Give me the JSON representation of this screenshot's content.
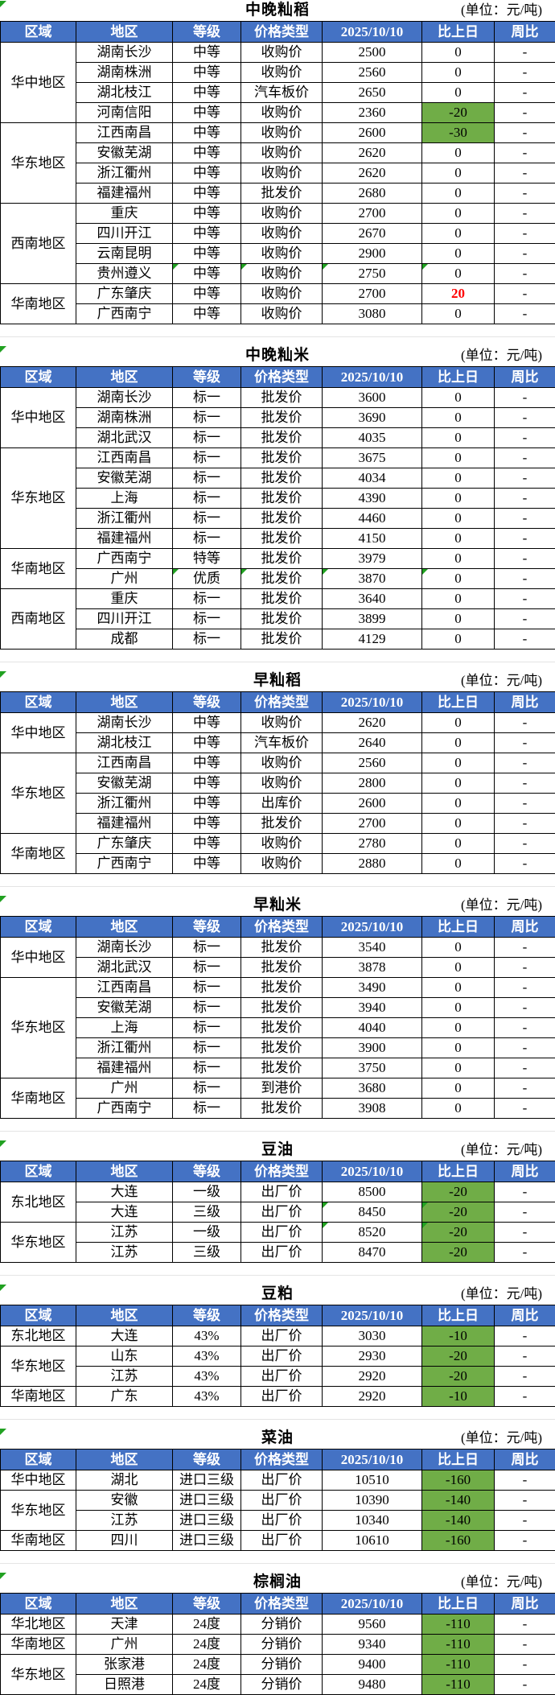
{
  "unit_label": "(单位：元/吨)",
  "columns": [
    "区域",
    "地区",
    "等级",
    "价格类型",
    "2025/10/10",
    "比上日",
    "周比"
  ],
  "colors": {
    "header_bg": "#4472C4",
    "down_bg": "#70AD47",
    "up_text": "#FF0000",
    "flag_color": "#21a121",
    "border": "#000000"
  },
  "tables": [
    {
      "title": "中晚籼稻",
      "title_flag": true,
      "groups": [
        {
          "region": "华中地区",
          "rows": [
            {
              "area": "湖南长沙",
              "grade": "中等",
              "type": "收购价",
              "price": "2500",
              "change": "0",
              "week": "-"
            },
            {
              "area": "湖南株洲",
              "grade": "中等",
              "type": "收购价",
              "price": "2560",
              "change": "0",
              "week": "-"
            },
            {
              "area": "湖北枝江",
              "grade": "中等",
              "type": "汽车板价",
              "price": "2650",
              "change": "0",
              "week": "-"
            },
            {
              "area": "河南信阳",
              "grade": "中等",
              "type": "收购价",
              "price": "2360",
              "change": "-20",
              "change_style": "down",
              "week": "-"
            }
          ]
        },
        {
          "region": "华东地区",
          "rows": [
            {
              "area": "江西南昌",
              "grade": "中等",
              "type": "收购价",
              "price": "2600",
              "change": "-30",
              "change_style": "down",
              "week": "-"
            },
            {
              "area": "安徽芜湖",
              "grade": "中等",
              "type": "收购价",
              "price": "2620",
              "change": "0",
              "week": "-"
            },
            {
              "area": "浙江衢州",
              "grade": "中等",
              "type": "收购价",
              "price": "2620",
              "change": "0",
              "week": "-"
            },
            {
              "area": "福建福州",
              "grade": "中等",
              "type": "批发价",
              "price": "2680",
              "change": "0",
              "week": "-"
            }
          ]
        },
        {
          "region": "西南地区",
          "rows": [
            {
              "area": "重庆",
              "grade": "中等",
              "type": "收购价",
              "price": "2700",
              "change": "0",
              "week": "-"
            },
            {
              "area": "四川开江",
              "grade": "中等",
              "type": "收购价",
              "price": "2670",
              "change": "0",
              "week": "-"
            },
            {
              "area": "云南昆明",
              "grade": "中等",
              "type": "收购价",
              "price": "2900",
              "change": "0",
              "week": "-"
            },
            {
              "area": "贵州遵义",
              "grade": "中等",
              "type": "收购价",
              "price": "2750",
              "change": "0",
              "week": "-",
              "flags": [
                "grade",
                "type",
                "price",
                "change"
              ]
            }
          ]
        },
        {
          "region": "华南地区",
          "rows": [
            {
              "area": "广东肇庆",
              "grade": "中等",
              "type": "收购价",
              "price": "2700",
              "change": "20",
              "change_style": "up",
              "week": "-"
            },
            {
              "area": "广西南宁",
              "grade": "中等",
              "type": "收购价",
              "price": "3080",
              "change": "0",
              "week": "-"
            }
          ]
        }
      ]
    },
    {
      "title": "中晚籼米",
      "title_flag": true,
      "groups": [
        {
          "region": "华中地区",
          "rows": [
            {
              "area": "湖南长沙",
              "grade": "标一",
              "type": "批发价",
              "price": "3600",
              "change": "0",
              "week": "-"
            },
            {
              "area": "湖南株洲",
              "grade": "标一",
              "type": "批发价",
              "price": "3690",
              "change": "0",
              "week": "-"
            },
            {
              "area": "湖北武汉",
              "grade": "标一",
              "type": "批发价",
              "price": "4035",
              "change": "0",
              "week": "-"
            }
          ]
        },
        {
          "region": "华东地区",
          "rows": [
            {
              "area": "江西南昌",
              "grade": "标一",
              "type": "批发价",
              "price": "3675",
              "change": "0",
              "week": "-"
            },
            {
              "area": "安徽芜湖",
              "grade": "标一",
              "type": "批发价",
              "price": "4034",
              "change": "0",
              "week": "-"
            },
            {
              "area": "上海",
              "grade": "标一",
              "type": "批发价",
              "price": "4390",
              "change": "0",
              "week": "-"
            },
            {
              "area": "浙江衢州",
              "grade": "标一",
              "type": "批发价",
              "price": "4460",
              "change": "0",
              "week": "-"
            },
            {
              "area": "福建福州",
              "grade": "标一",
              "type": "批发价",
              "price": "4150",
              "change": "0",
              "week": "-"
            }
          ]
        },
        {
          "region": "华南地区",
          "rows": [
            {
              "area": "广西南宁",
              "grade": "特等",
              "type": "批发价",
              "price": "3979",
              "change": "0",
              "week": "-"
            },
            {
              "area": "广州",
              "grade": "优质",
              "type": "批发价",
              "price": "3870",
              "change": "0",
              "week": "-",
              "flags": [
                "grade",
                "type",
                "price",
                "change"
              ]
            }
          ]
        },
        {
          "region": "西南地区",
          "rows": [
            {
              "area": "重庆",
              "grade": "标一",
              "type": "批发价",
              "price": "3640",
              "change": "0",
              "week": "-"
            },
            {
              "area": "四川开江",
              "grade": "标一",
              "type": "批发价",
              "price": "3899",
              "change": "0",
              "week": "-"
            },
            {
              "area": "成都",
              "grade": "标一",
              "type": "批发价",
              "price": "4129",
              "change": "0",
              "week": "-"
            }
          ]
        }
      ]
    },
    {
      "title": "早籼稻",
      "title_flag": true,
      "groups": [
        {
          "region": "华中地区",
          "rows": [
            {
              "area": "湖南长沙",
              "grade": "中等",
              "type": "收购价",
              "price": "2620",
              "change": "0",
              "week": "-"
            },
            {
              "area": "湖北枝江",
              "grade": "中等",
              "type": "汽车板价",
              "price": "2640",
              "change": "0",
              "week": "-"
            }
          ]
        },
        {
          "region": "华东地区",
          "rows": [
            {
              "area": "江西南昌",
              "grade": "中等",
              "type": "收购价",
              "price": "2560",
              "change": "0",
              "week": "-"
            },
            {
              "area": "安徽芜湖",
              "grade": "中等",
              "type": "收购价",
              "price": "2800",
              "change": "0",
              "week": "-"
            },
            {
              "area": "浙江衢州",
              "grade": "中等",
              "type": "出库价",
              "price": "2600",
              "change": "0",
              "week": "-"
            },
            {
              "area": "福建福州",
              "grade": "中等",
              "type": "批发价",
              "price": "2700",
              "change": "0",
              "week": "-"
            }
          ]
        },
        {
          "region": "华南地区",
          "rows": [
            {
              "area": "广东肇庆",
              "grade": "中等",
              "type": "收购价",
              "price": "2780",
              "change": "0",
              "week": "-"
            },
            {
              "area": "广西南宁",
              "grade": "中等",
              "type": "收购价",
              "price": "2880",
              "change": "0",
              "week": "-"
            }
          ]
        }
      ]
    },
    {
      "title": "早籼米",
      "title_flag": true,
      "groups": [
        {
          "region": "华中地区",
          "rows": [
            {
              "area": "湖南长沙",
              "grade": "标一",
              "type": "批发价",
              "price": "3540",
              "change": "0",
              "week": "-"
            },
            {
              "area": "湖北武汉",
              "grade": "标一",
              "type": "批发价",
              "price": "3878",
              "change": "0",
              "week": "-"
            }
          ]
        },
        {
          "region": "华东地区",
          "rows": [
            {
              "area": "江西南昌",
              "grade": "标一",
              "type": "批发价",
              "price": "3490",
              "change": "0",
              "week": "-"
            },
            {
              "area": "安徽芜湖",
              "grade": "标一",
              "type": "批发价",
              "price": "3940",
              "change": "0",
              "week": "-"
            },
            {
              "area": "上海",
              "grade": "标一",
              "type": "批发价",
              "price": "4040",
              "change": "0",
              "week": "-"
            },
            {
              "area": "浙江衢州",
              "grade": "标一",
              "type": "批发价",
              "price": "3900",
              "change": "0",
              "week": "-"
            },
            {
              "area": "福建福州",
              "grade": "标一",
              "type": "批发价",
              "price": "3750",
              "change": "0",
              "week": "-"
            }
          ]
        },
        {
          "region": "华南地区",
          "rows": [
            {
              "area": "广州",
              "grade": "标一",
              "type": "到港价",
              "price": "3680",
              "change": "0",
              "week": "-"
            },
            {
              "area": "广西南宁",
              "grade": "标一",
              "type": "批发价",
              "price": "3908",
              "change": "0",
              "week": "-"
            }
          ]
        }
      ]
    },
    {
      "title": "豆油",
      "title_flag": true,
      "groups": [
        {
          "region": "东北地区",
          "rows": [
            {
              "area": "大连",
              "grade": "一级",
              "type": "出厂价",
              "price": "8500",
              "change": "-20",
              "change_style": "down",
              "week": "-"
            },
            {
              "area": "大连",
              "grade": "三级",
              "type": "出厂价",
              "price": "8450",
              "change": "-20",
              "change_style": "down",
              "week": "-",
              "flags": [
                "price",
                "change"
              ]
            }
          ]
        },
        {
          "region": "华东地区",
          "rows": [
            {
              "area": "江苏",
              "grade": "一级",
              "type": "出厂价",
              "price": "8520",
              "change": "-20",
              "change_style": "down",
              "week": "-",
              "flags": [
                "price",
                "change"
              ]
            },
            {
              "area": "江苏",
              "grade": "三级",
              "type": "出厂价",
              "price": "8470",
              "change": "-20",
              "change_style": "down",
              "week": "-"
            }
          ]
        }
      ]
    },
    {
      "title": "豆粕",
      "title_flag": true,
      "groups": [
        {
          "region": "东北地区",
          "rows": [
            {
              "area": "大连",
              "grade": "43%",
              "type": "出厂价",
              "price": "3030",
              "change": "-10",
              "change_style": "down",
              "week": "-"
            }
          ]
        },
        {
          "region": "华东地区",
          "rows": [
            {
              "area": "山东",
              "grade": "43%",
              "type": "出厂价",
              "price": "2930",
              "change": "-20",
              "change_style": "down",
              "week": "-"
            },
            {
              "area": "江苏",
              "grade": "43%",
              "type": "出厂价",
              "price": "2920",
              "change": "-20",
              "change_style": "down",
              "week": "-"
            }
          ]
        },
        {
          "region": "华南地区",
          "rows": [
            {
              "area": "广东",
              "grade": "43%",
              "type": "出厂价",
              "price": "2920",
              "change": "-10",
              "change_style": "down",
              "week": "-"
            }
          ]
        }
      ]
    },
    {
      "title": "菜油",
      "title_flag": true,
      "groups": [
        {
          "region": "华中地区",
          "rows": [
            {
              "area": "湖北",
              "grade": "进口三级",
              "type": "出厂价",
              "price": "10510",
              "change": "-160",
              "change_style": "down",
              "week": "-"
            }
          ]
        },
        {
          "region": "华东地区",
          "rows": [
            {
              "area": "安徽",
              "grade": "进口三级",
              "type": "出厂价",
              "price": "10390",
              "change": "-140",
              "change_style": "down",
              "week": "-"
            },
            {
              "area": "江苏",
              "grade": "进口三级",
              "type": "出厂价",
              "price": "10340",
              "change": "-140",
              "change_style": "down",
              "week": "-"
            }
          ]
        },
        {
          "region": "华南地区",
          "rows": [
            {
              "area": "四川",
              "grade": "进口三级",
              "type": "出厂价",
              "price": "10610",
              "change": "-160",
              "change_style": "down",
              "week": "-"
            }
          ]
        }
      ]
    },
    {
      "title": "棕榈油",
      "title_flag": true,
      "groups": [
        {
          "region": "华北地区",
          "rows": [
            {
              "area": "天津",
              "grade": "24度",
              "type": "分销价",
              "price": "9560",
              "change": "-110",
              "change_style": "down",
              "week": "-"
            }
          ]
        },
        {
          "region": "华南地区",
          "rows": [
            {
              "area": "广州",
              "grade": "24度",
              "type": "分销价",
              "price": "9340",
              "change": "-110",
              "change_style": "down",
              "week": "-"
            }
          ]
        },
        {
          "region": "华东地区",
          "rows": [
            {
              "area": "张家港",
              "grade": "24度",
              "type": "分销价",
              "price": "9400",
              "change": "-110",
              "change_style": "down",
              "week": "-"
            },
            {
              "area": "日照港",
              "grade": "24度",
              "type": "分销价",
              "price": "9480",
              "change": "-110",
              "change_style": "down",
              "week": "-"
            }
          ]
        }
      ]
    }
  ]
}
